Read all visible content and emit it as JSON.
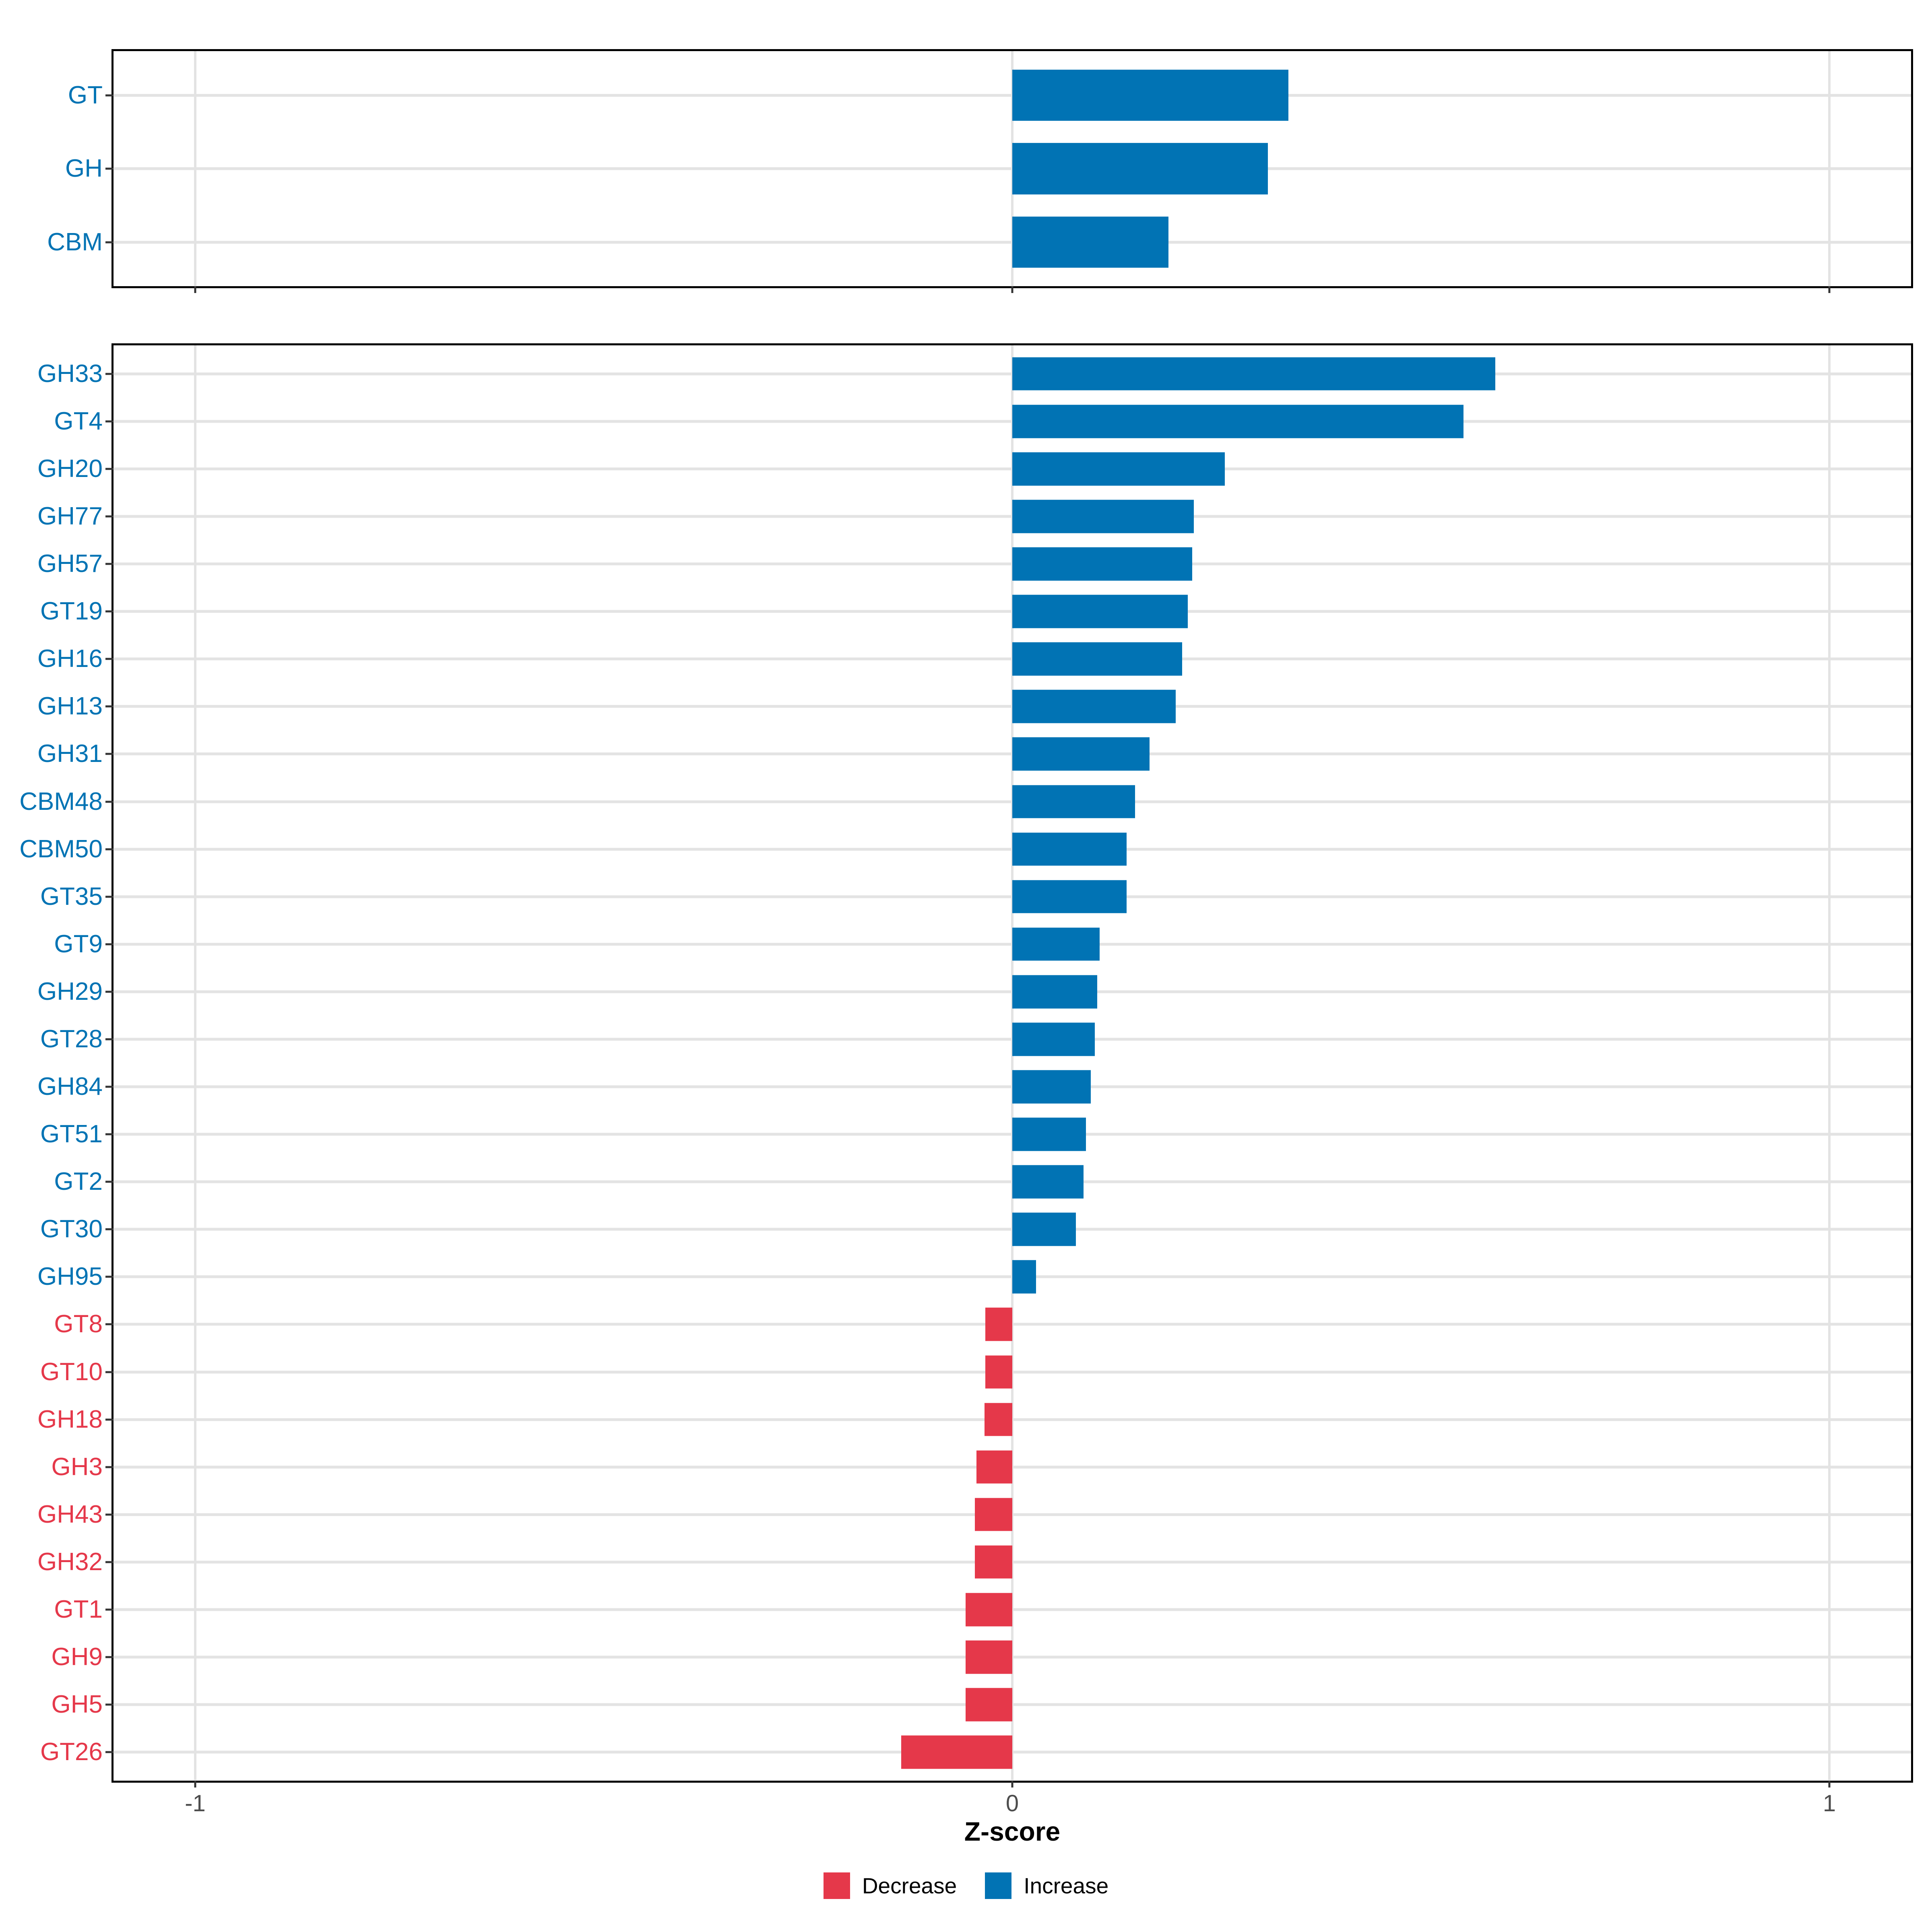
{
  "chart_data": {
    "type": "bar",
    "orientation": "horizontal",
    "title": "",
    "xlabel": "Z-score",
    "ylabel": "",
    "xlim": [
      -1.1,
      1.1
    ],
    "x_ticks": [
      -1,
      0,
      1
    ],
    "x_tick_labels": [
      "-1",
      "0",
      "1"
    ],
    "grid": true,
    "legend_position": "bottom",
    "panels": [
      {
        "name": "summary-panel",
        "categories": [
          "GT",
          "GH",
          "CBM"
        ],
        "values": [
          0.338,
          0.313,
          0.191
        ],
        "directions": [
          "Increase",
          "Increase",
          "Increase"
        ]
      },
      {
        "name": "family-panel",
        "categories": [
          "GH33",
          "GT4",
          "GH20",
          "GH77",
          "GH57",
          "GT19",
          "GH16",
          "GH13",
          "GH31",
          "CBM48",
          "CBM50",
          "GT35",
          "GT9",
          "GH29",
          "GT28",
          "GH84",
          "GT51",
          "GT2",
          "GT30",
          "GH95",
          "GT8",
          "GT10",
          "GH18",
          "GH3",
          "GH43",
          "GH32",
          "GT1",
          "GH9",
          "GH5",
          "GT26"
        ],
        "values": [
          0.591,
          0.552,
          0.26,
          0.222,
          0.22,
          0.215,
          0.208,
          0.2,
          0.168,
          0.15,
          0.14,
          0.14,
          0.107,
          0.104,
          0.101,
          0.096,
          0.09,
          0.087,
          0.078,
          0.029,
          -0.033,
          -0.033,
          -0.034,
          -0.044,
          -0.046,
          -0.046,
          -0.057,
          -0.057,
          -0.057,
          -0.136
        ],
        "directions": [
          "Increase",
          "Increase",
          "Increase",
          "Increase",
          "Increase",
          "Increase",
          "Increase",
          "Increase",
          "Increase",
          "Increase",
          "Increase",
          "Increase",
          "Increase",
          "Increase",
          "Increase",
          "Increase",
          "Increase",
          "Increase",
          "Increase",
          "Increase",
          "Decrease",
          "Decrease",
          "Decrease",
          "Decrease",
          "Decrease",
          "Decrease",
          "Decrease",
          "Decrease",
          "Decrease",
          "Decrease"
        ]
      }
    ],
    "legend": {
      "items": [
        {
          "label": "Decrease",
          "color": "#E5384A"
        },
        {
          "label": "Increase",
          "color": "#0173B4"
        }
      ]
    }
  },
  "colors": {
    "increase": "#0173B4",
    "decrease": "#E5384A",
    "gridline": "#E3E3E3",
    "panel_border": "#000000",
    "tick_mark": "#333333",
    "tick_label": "#4D4D4D"
  }
}
